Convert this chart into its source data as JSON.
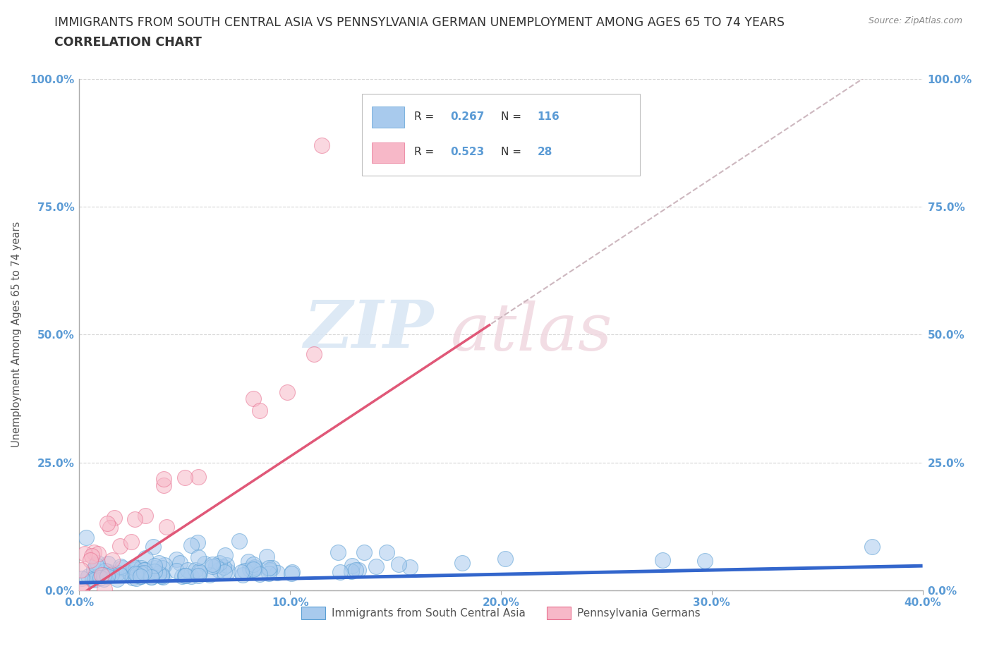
{
  "title_line1": "IMMIGRANTS FROM SOUTH CENTRAL ASIA VS PENNSYLVANIA GERMAN UNEMPLOYMENT AMONG AGES 65 TO 74 YEARS",
  "title_line2": "CORRELATION CHART",
  "source_text": "Source: ZipAtlas.com",
  "ylabel": "Unemployment Among Ages 65 to 74 years",
  "xmin": 0.0,
  "xmax": 0.4,
  "ymin": 0.0,
  "ymax": 1.0,
  "yticks": [
    0.0,
    0.25,
    0.5,
    0.75,
    1.0
  ],
  "ytick_labels": [
    "0.0%",
    "25.0%",
    "50.0%",
    "75.0%",
    "100.0%"
  ],
  "xticks": [
    0.0,
    0.1,
    0.2,
    0.3,
    0.4
  ],
  "xtick_labels": [
    "0.0%",
    "10.0%",
    "20.0%",
    "30.0%",
    "40.0%"
  ],
  "blue_color": "#A8CAED",
  "pink_color": "#F7B8C8",
  "blue_edge_color": "#5A9FD4",
  "pink_edge_color": "#E87090",
  "blue_line_color": "#3366CC",
  "pink_line_color": "#E05878",
  "dash_line_color": "#C8B0B8",
  "blue_R": 0.267,
  "blue_N": 116,
  "pink_R": 0.523,
  "pink_N": 28,
  "legend_label_blue": "Immigrants from South Central Asia",
  "legend_label_pink": "Pennsylvania Germans",
  "watermark_zip": "ZIP",
  "watermark_atlas": "atlas",
  "background_color": "#ffffff",
  "grid_color": "#cccccc",
  "title_color": "#333333",
  "tick_label_color": "#5B9BD5",
  "legend_R_color": "#333333",
  "legend_val_color": "#5B9BD5"
}
